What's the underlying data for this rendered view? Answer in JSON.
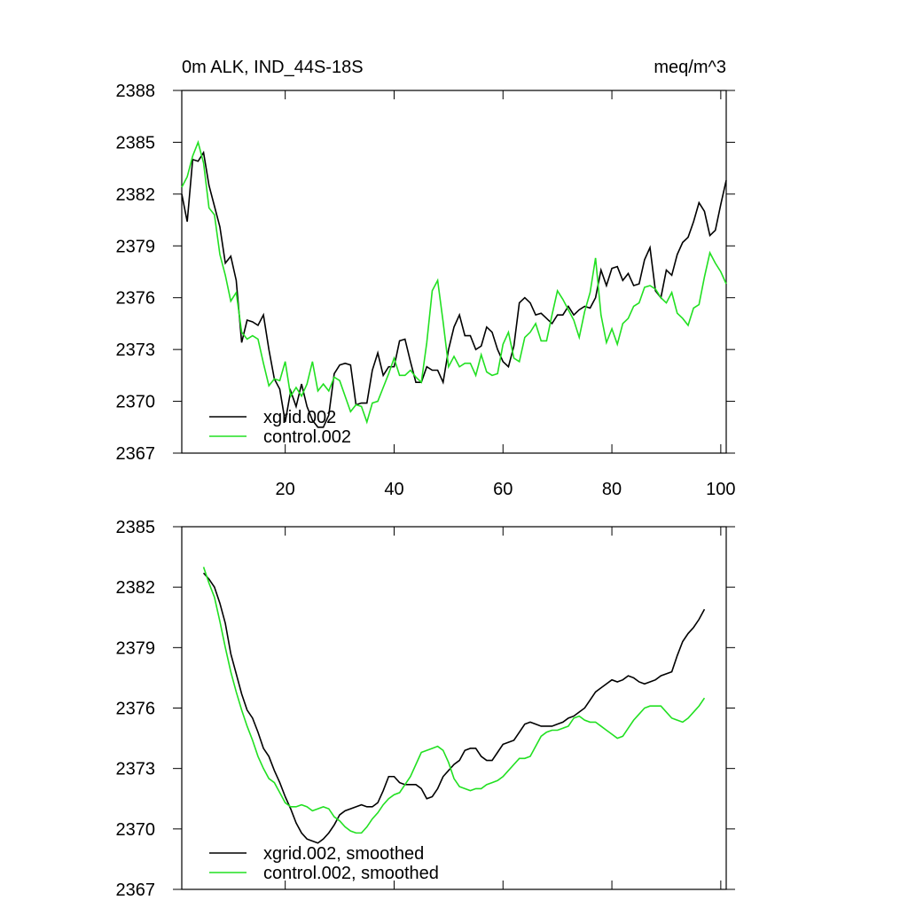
{
  "chart_data": [
    {
      "type": "line",
      "title": "0m ALK, IND_44S-18S",
      "units": "meq/m^3",
      "x": [
        1,
        2,
        3,
        4,
        5,
        6,
        7,
        8,
        9,
        10,
        11,
        12,
        13,
        14,
        15,
        16,
        17,
        18,
        19,
        20,
        21,
        22,
        23,
        24,
        25,
        26,
        27,
        28,
        29,
        30,
        31,
        32,
        33,
        34,
        35,
        36,
        37,
        38,
        39,
        40,
        41,
        42,
        43,
        44,
        45,
        46,
        47,
        48,
        49,
        50,
        51,
        52,
        53,
        54,
        55,
        56,
        57,
        58,
        59,
        60,
        61,
        62,
        63,
        64,
        65,
        66,
        67,
        68,
        69,
        70,
        71,
        72,
        73,
        74,
        75,
        76,
        77,
        78,
        79,
        80,
        81,
        82,
        83,
        84,
        85,
        86,
        87,
        88,
        89,
        90,
        91,
        92,
        93,
        94,
        95,
        96,
        97,
        98,
        99,
        100,
        101
      ],
      "series": [
        {
          "name": "xgrid.002",
          "color": "#000000",
          "values": [
            2382.0,
            2380.4,
            2384.0,
            2383.9,
            2384.4,
            2382.5,
            2381.3,
            2380.1,
            2378.0,
            2378.4,
            2377.0,
            2373.4,
            2374.7,
            2374.6,
            2374.4,
            2375.0,
            2373.0,
            2371.3,
            2370.7,
            2368.8,
            2370.6,
            2369.7,
            2371.0,
            2369.7,
            2368.9,
            2368.5,
            2368.5,
            2369.2,
            2371.6,
            2372.1,
            2372.2,
            2372.1,
            2369.8,
            2369.9,
            2369.9,
            2371.8,
            2372.8,
            2371.5,
            2372.0,
            2372.0,
            2373.5,
            2373.6,
            2372.3,
            2371.1,
            2371.1,
            2372.0,
            2371.8,
            2371.8,
            2371.1,
            2373.0,
            2374.3,
            2375.0,
            2373.8,
            2373.8,
            2373.0,
            2373.2,
            2374.3,
            2374.0,
            2373.0,
            2372.3,
            2372.0,
            2373.2,
            2375.7,
            2376.0,
            2375.7,
            2375.0,
            2375.1,
            2374.8,
            2374.5,
            2375.0,
            2375.0,
            2375.5,
            2375.0,
            2375.3,
            2375.5,
            2375.4,
            2376.0,
            2377.6,
            2376.7,
            2377.7,
            2377.8,
            2377.0,
            2377.4,
            2376.7,
            2376.8,
            2378.2,
            2378.9,
            2376.4,
            2376.0,
            2377.6,
            2377.3,
            2378.5,
            2379.2,
            2379.5,
            2380.4,
            2381.5,
            2381.0,
            2379.6,
            2379.9,
            2381.4,
            2382.8
          ]
        },
        {
          "name": "control.002",
          "color": "#22e022",
          "values": [
            2382.4,
            2383.0,
            2384.2,
            2385.0,
            2383.8,
            2381.2,
            2380.8,
            2378.5,
            2377.3,
            2375.8,
            2376.3,
            2374.0,
            2373.6,
            2373.8,
            2373.6,
            2372.2,
            2370.9,
            2371.3,
            2371.2,
            2372.3,
            2370.3,
            2370.8,
            2370.3,
            2371.0,
            2372.3,
            2370.6,
            2371.0,
            2370.6,
            2371.4,
            2371.2,
            2370.3,
            2369.4,
            2369.8,
            2369.7,
            2368.8,
            2369.9,
            2370.0,
            2370.8,
            2371.6,
            2372.5,
            2371.5,
            2371.5,
            2371.8,
            2371.4,
            2371.1,
            2373.4,
            2376.4,
            2377.0,
            2374.6,
            2372.0,
            2372.6,
            2372.0,
            2372.2,
            2372.2,
            2371.5,
            2372.7,
            2371.7,
            2371.5,
            2371.6,
            2373.3,
            2374.0,
            2372.5,
            2372.3,
            2373.7,
            2374.0,
            2374.5,
            2373.5,
            2373.5,
            2375.0,
            2376.4,
            2375.9,
            2375.3,
            2374.7,
            2373.7,
            2375.2,
            2376.3,
            2378.3,
            2375.0,
            2373.4,
            2374.2,
            2373.3,
            2374.5,
            2374.8,
            2375.5,
            2375.7,
            2376.6,
            2376.7,
            2376.5,
            2376.0,
            2375.7,
            2376.3,
            2375.1,
            2374.8,
            2374.4,
            2375.4,
            2375.6,
            2377.2,
            2378.6,
            2378.0,
            2377.5,
            2376.8
          ]
        }
      ],
      "xlim": [
        1,
        101
      ],
      "xticks": [
        20,
        40,
        60,
        80,
        100
      ],
      "ylim": [
        2367,
        2388
      ],
      "yticks": [
        2367,
        2370,
        2373,
        2376,
        2379,
        2382,
        2385,
        2388
      ],
      "legend": "lower left"
    },
    {
      "type": "line",
      "x": [
        1,
        2,
        3,
        4,
        5,
        6,
        7,
        8,
        9,
        10,
        11,
        12,
        13,
        14,
        15,
        16,
        17,
        18,
        19,
        20,
        21,
        22,
        23,
        24,
        25,
        26,
        27,
        28,
        29,
        30,
        31,
        32,
        33,
        34,
        35,
        36,
        37,
        38,
        39,
        40,
        41,
        42,
        43,
        44,
        45,
        46,
        47,
        48,
        49,
        50,
        51,
        52,
        53,
        54,
        55,
        56,
        57,
        58,
        59,
        60,
        61,
        62,
        63,
        64,
        65,
        66,
        67,
        68,
        69,
        70,
        71,
        72,
        73,
        74,
        75,
        76,
        77,
        78,
        79,
        80,
        81,
        82,
        83,
        84,
        85,
        86,
        87,
        88,
        89,
        90,
        91,
        92,
        93,
        94,
        95,
        96,
        97,
        98,
        99,
        100,
        101
      ],
      "series": [
        {
          "name": "xgrid.002, smoothed",
          "color": "#000000",
          "values": [
            null,
            null,
            null,
            null,
            2382.7,
            2382.4,
            2382.0,
            2381.2,
            2380.2,
            2378.7,
            2377.7,
            2376.7,
            2375.9,
            2375.5,
            2374.8,
            2374.0,
            2373.6,
            2372.9,
            2372.3,
            2371.6,
            2371.0,
            2370.3,
            2369.8,
            2369.5,
            2369.4,
            2369.3,
            2369.5,
            2369.8,
            2370.2,
            2370.7,
            2370.9,
            2371.0,
            2371.1,
            2371.2,
            2371.1,
            2371.1,
            2371.3,
            2371.9,
            2372.6,
            2372.6,
            2372.3,
            2372.2,
            2372.2,
            2372.2,
            2372.0,
            2371.5,
            2371.6,
            2372.0,
            2372.6,
            2372.9,
            2373.2,
            2373.4,
            2373.9,
            2374.0,
            2374.0,
            2373.6,
            2373.4,
            2373.4,
            2373.8,
            2374.2,
            2374.3,
            2374.4,
            2374.8,
            2375.2,
            2375.3,
            2375.2,
            2375.1,
            2375.1,
            2375.1,
            2375.2,
            2375.3,
            2375.5,
            2375.6,
            2375.8,
            2376.0,
            2376.4,
            2376.8,
            2377.0,
            2377.2,
            2377.4,
            2377.3,
            2377.4,
            2377.6,
            2377.5,
            2377.3,
            2377.2,
            2377.3,
            2377.4,
            2377.6,
            2377.7,
            2377.8,
            2378.6,
            2379.3,
            2379.7,
            2380.0,
            2380.4,
            2380.9,
            null,
            null,
            null,
            null
          ]
        },
        {
          "name": "control.002, smoothed",
          "color": "#22e022",
          "values": [
            null,
            null,
            null,
            null,
            2383.0,
            2382.2,
            2381.5,
            2380.3,
            2379.0,
            2377.8,
            2376.8,
            2375.9,
            2375.1,
            2374.4,
            2373.6,
            2373.0,
            2372.5,
            2372.3,
            2371.8,
            2371.3,
            2371.1,
            2371.1,
            2371.2,
            2371.1,
            2370.9,
            2371.0,
            2371.1,
            2371.0,
            2370.6,
            2370.4,
            2370.1,
            2369.9,
            2369.8,
            2369.8,
            2370.1,
            2370.5,
            2370.8,
            2371.2,
            2371.5,
            2371.7,
            2371.8,
            2372.2,
            2372.6,
            2373.2,
            2373.8,
            2373.9,
            2374.0,
            2374.1,
            2373.9,
            2373.3,
            2372.5,
            2372.1,
            2372.0,
            2371.9,
            2372.0,
            2372.0,
            2372.2,
            2372.3,
            2372.4,
            2372.6,
            2372.9,
            2373.2,
            2373.5,
            2373.5,
            2373.6,
            2374.1,
            2374.6,
            2374.8,
            2374.9,
            2374.9,
            2375.0,
            2375.1,
            2375.5,
            2375.6,
            2375.4,
            2375.3,
            2375.3,
            2375.1,
            2374.9,
            2374.7,
            2374.5,
            2374.6,
            2375.0,
            2375.4,
            2375.7,
            2376.0,
            2376.1,
            2376.1,
            2376.1,
            2375.8,
            2375.5,
            2375.4,
            2375.3,
            2375.5,
            2375.8,
            2376.1,
            2376.5,
            null,
            null,
            null,
            null
          ]
        }
      ],
      "xlim": [
        1,
        101
      ],
      "xticks": [
        20,
        40,
        60,
        80,
        100
      ],
      "ylim": [
        2367,
        2385
      ],
      "yticks": [
        2367,
        2370,
        2373,
        2376,
        2379,
        2382,
        2385
      ],
      "legend": "lower left"
    }
  ]
}
